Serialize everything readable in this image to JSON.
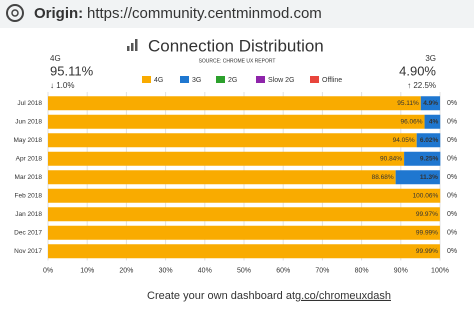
{
  "header": {
    "label": "Origin:",
    "url": "https://community.centminmod.com"
  },
  "chart_data": {
    "type": "stacked-bar-horizontal",
    "title": "Connection Distribution",
    "subtitle": "SOURCE: CHROME UX REPORT",
    "summary": [
      {
        "name": "4G",
        "value": "95.11%",
        "change": "↓ 1.0%"
      },
      {
        "name": "3G",
        "value": "4.90%",
        "change": "↑ 22.5%"
      }
    ],
    "categories": [
      "Jul 2018",
      "Jun 2018",
      "May 2018",
      "Apr 2018",
      "Mar 2018",
      "Feb 2018",
      "Jan 2018",
      "Dec 2017",
      "Nov 2017"
    ],
    "series": [
      {
        "name": "4G",
        "color": "#f9ab00",
        "values": [
          95.11,
          96.06,
          94.05,
          90.84,
          88.68,
          100.06,
          99.97,
          99.99,
          99.99
        ],
        "value_labels": [
          "95.11%",
          "96.06%",
          "94.05%",
          "90.84%",
          "88.68%",
          "100.06%",
          "99.97%",
          "99.99%",
          "99.99%"
        ]
      },
      {
        "name": "3G",
        "color": "#1f77d0",
        "values": [
          4.9,
          4,
          6.02,
          9.25,
          11.3,
          0,
          0,
          0,
          0
        ],
        "value_labels": [
          "4.9%",
          "4%",
          "6.02%",
          "9.25%",
          "11.3%",
          null,
          null,
          null,
          null
        ]
      },
      {
        "name": "2G",
        "color": "#2ca02c",
        "values": [
          0,
          0,
          0,
          0,
          0,
          0,
          0,
          0,
          0
        ]
      },
      {
        "name": "Slow 2G",
        "color": "#8e24aa",
        "values": [
          0,
          0,
          0,
          0,
          0,
          0,
          0,
          0,
          0
        ]
      },
      {
        "name": "Offline",
        "color": "#e8453c",
        "values": [
          0,
          0,
          0,
          0,
          0,
          0,
          0,
          0,
          0
        ],
        "value_labels": [
          "0%",
          "0%",
          "0%",
          "0%",
          "0%",
          "0%",
          "0%",
          "0%",
          "0%"
        ]
      }
    ],
    "xlim": [
      0,
      100
    ],
    "xticks": [
      {
        "value": 0,
        "label": "0%"
      },
      {
        "value": 10,
        "label": "10%"
      },
      {
        "value": 20,
        "label": "20%"
      },
      {
        "value": 30,
        "label": "30%"
      },
      {
        "value": 40,
        "label": "40%"
      },
      {
        "value": 50,
        "label": "50%"
      },
      {
        "value": 60,
        "label": "60%"
      },
      {
        "value": 70,
        "label": "70%"
      },
      {
        "value": 80,
        "label": "80%"
      },
      {
        "value": 90,
        "label": "90%"
      },
      {
        "value": 100,
        "label": "100%"
      }
    ],
    "grid": true
  },
  "footer": {
    "text": "Create your own dashboard at ",
    "link": "g.co/chromeuxdash"
  }
}
